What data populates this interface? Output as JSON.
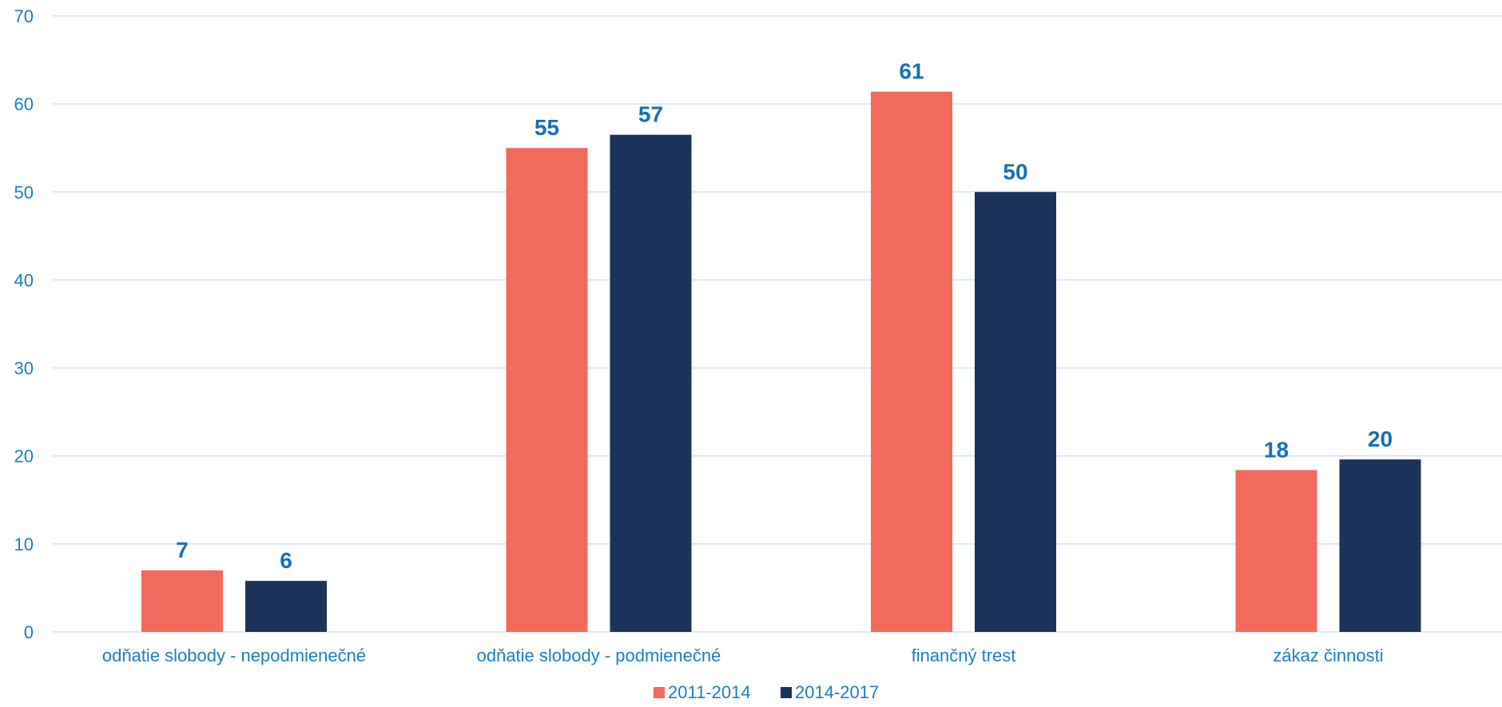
{
  "chart_data": {
    "type": "bar",
    "title": "",
    "xlabel": "",
    "ylabel": "",
    "categories": [
      "odňatie slobody - nepodmienečné",
      "odňatie slobody - podmienečné",
      "finančný trest",
      "zákaz činnosti"
    ],
    "series": [
      {
        "name": "2011-2014",
        "color": "#f26a5b",
        "values": [
          7,
          55,
          61,
          18
        ],
        "plot_values": [
          7.0,
          55.0,
          61.4,
          18.4
        ]
      },
      {
        "name": "2014-2017",
        "color": "#1c335c",
        "values": [
          6,
          57,
          50,
          20
        ],
        "plot_values": [
          5.8,
          56.5,
          50.0,
          19.6
        ]
      }
    ],
    "ylim": [
      0,
      70
    ],
    "yticks": [
      0,
      10,
      20,
      30,
      40,
      50,
      60,
      70
    ],
    "grid": true,
    "legend_position": "bottom-center",
    "colors": {
      "text": "#1a7fc0",
      "grid": "#cfe5f4",
      "data_label": "#1570b5"
    }
  }
}
